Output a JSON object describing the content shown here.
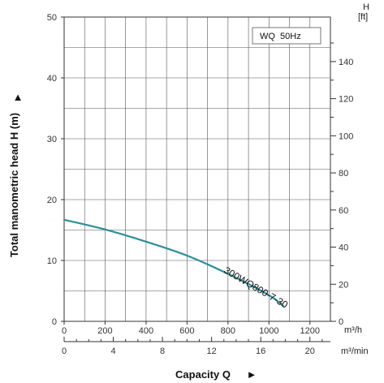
{
  "chart_data": {
    "type": "line",
    "legend_text": "WQ  50Hz",
    "ylabel": "Total manometric head H (m)",
    "ylabel_arrow": "▲",
    "xlabel": "Capacity Q",
    "xlabel_arrow": "►",
    "left_axis": {
      "range": [
        0,
        50
      ],
      "ticks": [
        0,
        10,
        20,
        30,
        40,
        50
      ]
    },
    "right_axis": {
      "unit_symbol": "H",
      "unit": "[ft]",
      "ticks": [
        0,
        20,
        40,
        60,
        80,
        100,
        120,
        140
      ],
      "max_ft": 164
    },
    "x_axis": {
      "range": [
        0,
        1300
      ],
      "ticks": [
        0,
        200,
        400,
        600,
        800,
        1000,
        1200
      ],
      "unit": "m³/h"
    },
    "x_axis_secondary": {
      "range": [
        0,
        21.67
      ],
      "ticks": [
        0,
        4,
        8,
        12,
        16,
        20
      ],
      "unit": "m³/min"
    },
    "grid": true,
    "series": [
      {
        "name": "300WQ800-7-30",
        "color": "#2a8f9a",
        "x": [
          0,
          200,
          400,
          600,
          800,
          1000,
          1070
        ],
        "y": [
          16.7,
          15.1,
          13.1,
          10.8,
          7.8,
          4.3,
          2.5
        ]
      }
    ]
  }
}
